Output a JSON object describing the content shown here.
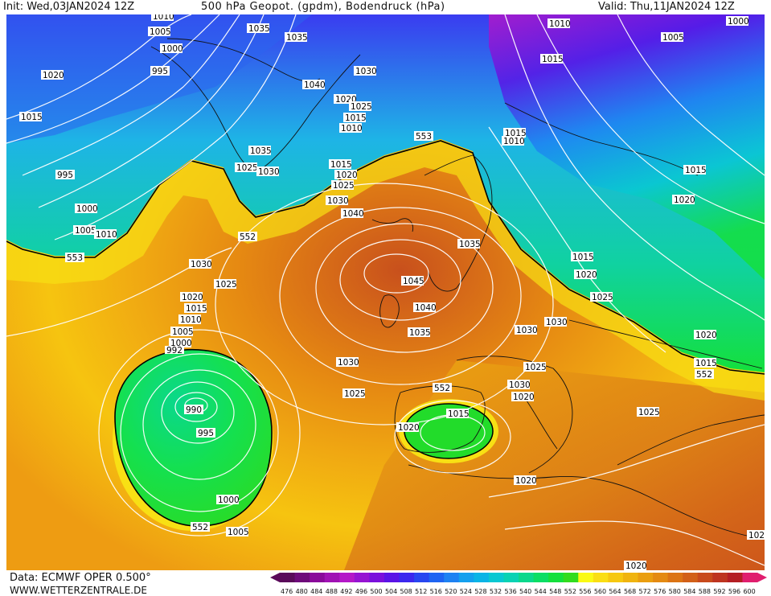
{
  "header": {
    "init": "Init: Wed,03JAN2024  12Z",
    "title": "500  hPa  Geopot. (gpdm),  Bodendruck  (hPa)",
    "valid": "Valid:  Thu,11JAN2024  12Z"
  },
  "footer": {
    "data_source": "Data:  ECMWF  OPER  0.500°",
    "website": "WWW.WETTERZENTRALE.DE"
  },
  "colorbar": {
    "ticks": [
      "476",
      "480",
      "484",
      "488",
      "492",
      "496",
      "500",
      "504",
      "508",
      "512",
      "516",
      "520",
      "524",
      "528",
      "532",
      "536",
      "540",
      "544",
      "548",
      "552",
      "556",
      "560",
      "564",
      "568",
      "572",
      "576",
      "580",
      "584",
      "588",
      "592",
      "596",
      "600"
    ],
    "colors": [
      "#5a0a5a",
      "#6e0a7a",
      "#8a0a9a",
      "#a012b4",
      "#b418c8",
      "#9614d2",
      "#7a10dc",
      "#5a14e6",
      "#3c28ee",
      "#2846f0",
      "#1e64f2",
      "#1e82f2",
      "#14a0ee",
      "#0ab4e6",
      "#08c8d2",
      "#08d2b4",
      "#0ad88c",
      "#0ade64",
      "#14e03c",
      "#32dc1e",
      "#fafa14",
      "#fade14",
      "#f6c810",
      "#f0b410",
      "#ea9e10",
      "#e48a12",
      "#dc7414",
      "#d26018",
      "#c84a1c",
      "#be3420",
      "#b41e24",
      "#e01e6e"
    ]
  },
  "map": {
    "pressure_labels": [
      "1010",
      "1005",
      "1000",
      "995",
      "1020",
      "1015",
      "995",
      "1000",
      "1005",
      "1010",
      "553",
      "1035",
      "1035",
      "1030",
      "1040",
      "1020",
      "1025",
      "1015",
      "1010",
      "1035",
      "1025",
      "1030",
      "553",
      "1015",
      "1020",
      "1025",
      "1030",
      "1040",
      "552",
      "1030",
      "1025",
      "1020",
      "1015",
      "1010",
      "1005",
      "1000",
      "992",
      "990",
      "995",
      "1000",
      "552",
      "1005",
      "1045",
      "1040",
      "1035",
      "1030",
      "1030",
      "1025",
      "552",
      "1015",
      "1020",
      "1035",
      "1015",
      "1010",
      "1010",
      "1005",
      "1000",
      "1015",
      "1015",
      "1020",
      "1015",
      "1020",
      "1025",
      "1030",
      "1030",
      "1025",
      "1020",
      "1020",
      "1025",
      "1020",
      "1015",
      "552",
      "1020",
      "102"
    ],
    "contour_levels": [
      552
    ]
  }
}
